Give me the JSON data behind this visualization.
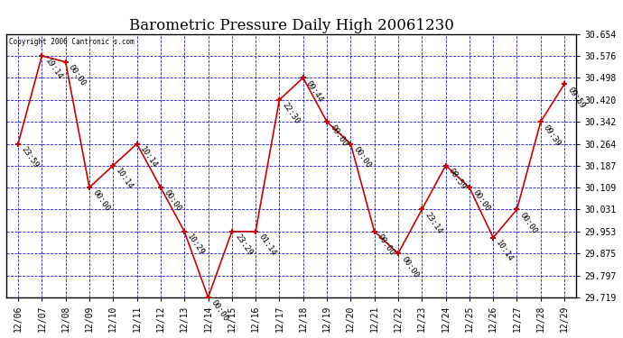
{
  "title": "Barometric Pressure Daily High 20061230",
  "copyright": "Copyright 2006 Cantronic s.com",
  "x_labels": [
    "12/06",
    "12/07",
    "12/08",
    "12/09",
    "12/10",
    "12/11",
    "12/12",
    "12/13",
    "12/14",
    "12/15",
    "12/16",
    "12/17",
    "12/18",
    "12/19",
    "12/20",
    "12/21",
    "12/22",
    "12/23",
    "12/24",
    "12/25",
    "12/26",
    "12/27",
    "12/28",
    "12/29"
  ],
  "y_values": [
    30.264,
    30.576,
    30.554,
    30.109,
    30.187,
    30.264,
    30.109,
    29.953,
    29.719,
    29.953,
    29.953,
    30.42,
    30.498,
    30.342,
    30.264,
    29.953,
    29.875,
    30.031,
    30.187,
    30.109,
    29.931,
    30.031,
    30.342,
    30.476
  ],
  "point_labels": [
    "23:59",
    "19:14",
    "00:00",
    "00:00",
    "10:14",
    "10:14",
    "00:00",
    "10:29",
    "00:00",
    "23:29",
    "01:14",
    "22:30",
    "09:44",
    "00:00",
    "00:00",
    "00:00",
    "00:00",
    "23:14",
    "08:59",
    "00:00",
    "10:14",
    "00:00",
    "09:39",
    "09:59"
  ],
  "line_color": "#CC0000",
  "marker_color": "#CC0000",
  "bg_color": "#FFFFFF",
  "plot_bg_color": "#FFFFFF",
  "grid_color": "#0000BB",
  "y_min": 29.719,
  "y_max": 30.654,
  "y_ticks": [
    29.719,
    29.797,
    29.875,
    29.953,
    30.031,
    30.109,
    30.187,
    30.264,
    30.342,
    30.42,
    30.498,
    30.576,
    30.654
  ],
  "title_fontsize": 12,
  "label_fontsize": 6.5,
  "tick_fontsize": 7
}
